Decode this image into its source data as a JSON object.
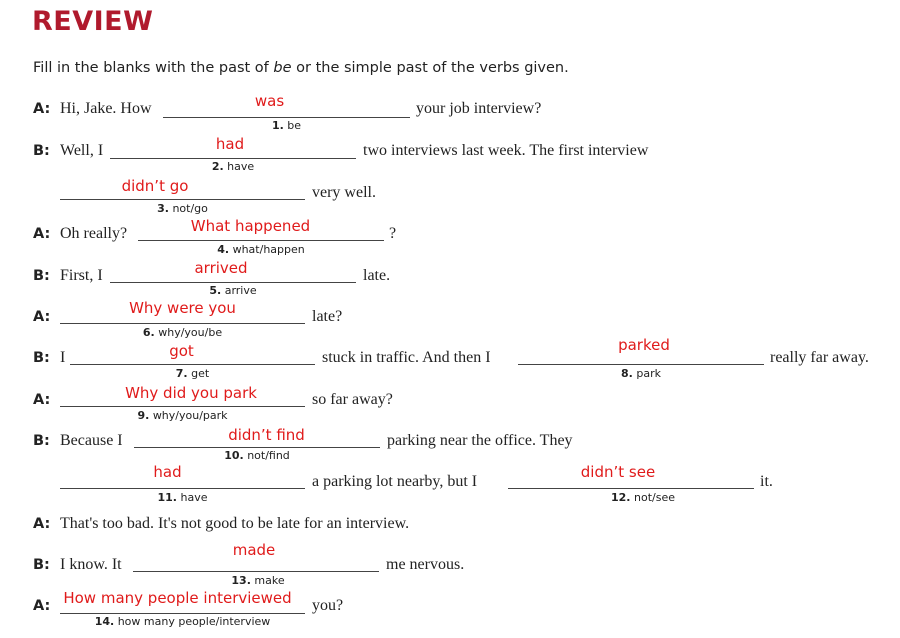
{
  "title": "REVIEW",
  "instructions": {
    "before": "Fill in the blanks with the past of ",
    "em": "be",
    "after": " or the simple past of the verbs given."
  },
  "lines": [
    {
      "speaker": "A:",
      "t1": "Hi, Jake. How",
      "t2": "your job interview?"
    },
    {
      "speaker": "B:",
      "t1": "Well, I",
      "t2": "two interviews last week. The first interview"
    },
    {
      "t2": "very well."
    },
    {
      "speaker": "A:",
      "t1": "Oh really?",
      "t2": "?"
    },
    {
      "speaker": "B:",
      "t1": "First, I",
      "t2": "late."
    },
    {
      "speaker": "A:",
      "t2": "late?"
    },
    {
      "speaker": "B:",
      "t1": "I",
      "t2": "stuck in traffic. And then I",
      "t3": "really far away."
    },
    {
      "speaker": "A:",
      "t2": "so far away?"
    },
    {
      "speaker": "B:",
      "t1": "Because I",
      "t2": "parking near the office. They"
    },
    {
      "t2": "a parking lot nearby, but I",
      "t3": "it."
    },
    {
      "speaker": "A:",
      "t1": "That's too bad. It's not good to be late for an interview."
    },
    {
      "speaker": "B:",
      "t1": "I know. It",
      "t2": "me nervous."
    },
    {
      "speaker": "A:",
      "t2": "you?"
    }
  ],
  "blanks": [
    {
      "answer": "was",
      "hint_num": "1.",
      "hint": "be"
    },
    {
      "answer": "had",
      "hint_num": "2.",
      "hint": "have"
    },
    {
      "answer": "didn’t go",
      "hint_num": "3.",
      "hint": "not/go"
    },
    {
      "answer": "What happened",
      "hint_num": "4.",
      "hint": "what/happen"
    },
    {
      "answer": "arrived",
      "hint_num": "5.",
      "hint": "arrive"
    },
    {
      "answer": "Why were you",
      "hint_num": "6.",
      "hint": "why/you/be"
    },
    {
      "answer": "got",
      "hint_num": "7.",
      "hint": "get"
    },
    {
      "answer": "parked",
      "hint_num": "8.",
      "hint": "park"
    },
    {
      "answer": "Why did you park",
      "hint_num": "9.",
      "hint": "why/you/park"
    },
    {
      "answer": "didn’t find",
      "hint_num": "10.",
      "hint": "not/find"
    },
    {
      "answer": "had",
      "hint_num": "11.",
      "hint": "have"
    },
    {
      "answer": "didn’t see",
      "hint_num": "12.",
      "hint": "not/see"
    },
    {
      "answer": "made",
      "hint_num": "13.",
      "hint": "make"
    },
    {
      "answer": "How many people interviewed",
      "hint_num": "14.",
      "hint": "how many people/interview"
    }
  ]
}
